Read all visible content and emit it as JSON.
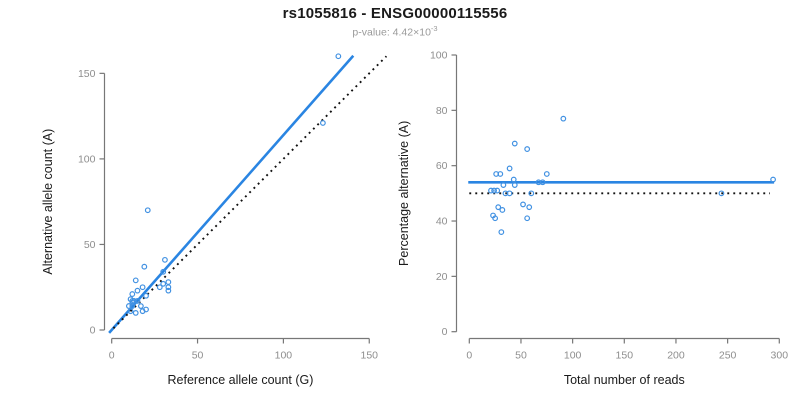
{
  "header": {
    "title": "rs1055816 - ENSG00000115556",
    "subtitle_prefix": "p-value: 4.42×10",
    "subtitle_superscript": "-3"
  },
  "colors": {
    "line_blue": "#2a85e2",
    "point_blue": "#4191e2",
    "dotted_black": "#111111",
    "axis_gray": "#777777",
    "tick_label_gray": "#8e8e8e",
    "axis_title_black": "#1a1a1a",
    "subtitle_gray": "#9a9a9a"
  },
  "chart_data": [
    {
      "id": "left",
      "type": "scatter",
      "title": "",
      "xlabel": "Reference allele count (G)",
      "ylabel": "Alternative allele count (A)",
      "xticks": [
        0,
        50,
        100,
        150
      ],
      "yticks": [
        0,
        50,
        100,
        150
      ],
      "xlim": [
        0,
        160
      ],
      "ylim": [
        0,
        165
      ],
      "grid": false,
      "points": [
        [
          132,
          160
        ],
        [
          123,
          121
        ],
        [
          21,
          70
        ],
        [
          31,
          41
        ],
        [
          19,
          37
        ],
        [
          30,
          34
        ],
        [
          14,
          29
        ],
        [
          33,
          28
        ],
        [
          30,
          27
        ],
        [
          28,
          25
        ],
        [
          33,
          25
        ],
        [
          33,
          23
        ],
        [
          18,
          25
        ],
        [
          15,
          23
        ],
        [
          20,
          20
        ],
        [
          12,
          21
        ],
        [
          11,
          18
        ],
        [
          13,
          17
        ],
        [
          12,
          17
        ],
        [
          12,
          16
        ],
        [
          15,
          17
        ],
        [
          10,
          14
        ],
        [
          12,
          14
        ],
        [
          17,
          14
        ],
        [
          20,
          12
        ],
        [
          14,
          10
        ],
        [
          11,
          11
        ],
        [
          18,
          11
        ]
      ],
      "lines": [
        {
          "name": "fit-line",
          "style": "solid",
          "color": "blue",
          "from": [
            -1.5,
            -1.7
          ],
          "to": [
            140.7,
            160.3
          ]
        },
        {
          "name": "identity-line",
          "style": "dotted",
          "color": "black",
          "from": [
            1,
            1
          ],
          "to": [
            160,
            160
          ]
        }
      ]
    },
    {
      "id": "right",
      "type": "scatter",
      "title": "",
      "xlabel": "Total number of reads",
      "ylabel": "Percentage alternative (A)",
      "xticks": [
        0,
        50,
        100,
        150,
        200,
        250,
        300
      ],
      "yticks": [
        0,
        20,
        40,
        60,
        80,
        100
      ],
      "xlim": [
        0,
        300
      ],
      "ylim": [
        0,
        100
      ],
      "grid": false,
      "points": [
        [
          294,
          55
        ],
        [
          244,
          50
        ],
        [
          91,
          77
        ],
        [
          56,
          66
        ],
        [
          44,
          68
        ],
        [
          75,
          57
        ],
        [
          67,
          54
        ],
        [
          71,
          54
        ],
        [
          39,
          59
        ],
        [
          26,
          57
        ],
        [
          30,
          57
        ],
        [
          43,
          55
        ],
        [
          44,
          53
        ],
        [
          33,
          53
        ],
        [
          21,
          51
        ],
        [
          27,
          51
        ],
        [
          24,
          51
        ],
        [
          35,
          50
        ],
        [
          39,
          50
        ],
        [
          60,
          50
        ],
        [
          52,
          46
        ],
        [
          58,
          45
        ],
        [
          28,
          45
        ],
        [
          32,
          44
        ],
        [
          23,
          42
        ],
        [
          25,
          41
        ],
        [
          56,
          41
        ],
        [
          31,
          36
        ]
      ],
      "lines": [
        {
          "name": "mean-percentage-line",
          "style": "solid",
          "color": "blue",
          "from": [
            -1,
            54
          ],
          "to": [
            295,
            54
          ]
        },
        {
          "name": "expected-50pct-line",
          "style": "dotted",
          "color": "black",
          "from": [
            0,
            50
          ],
          "to": [
            291,
            50
          ]
        }
      ]
    }
  ]
}
